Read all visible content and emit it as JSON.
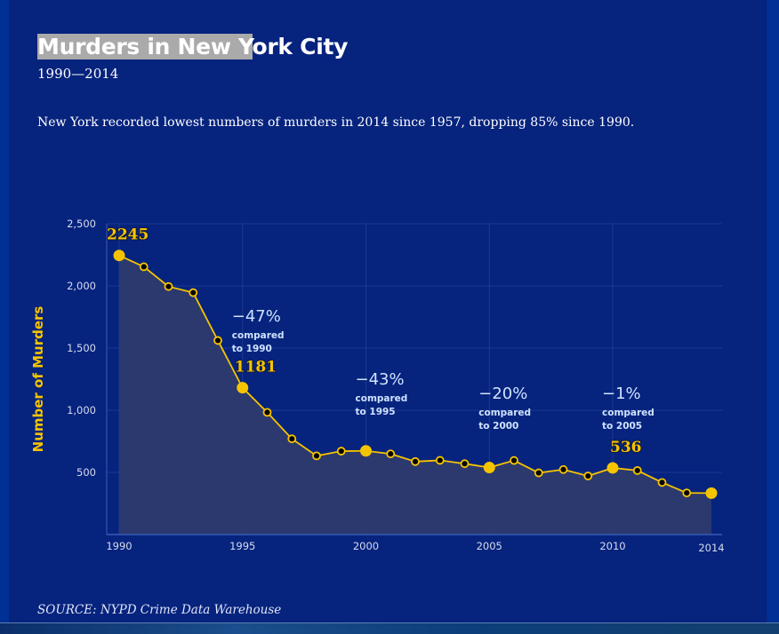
{
  "header": {
    "title_highlighted": "Murders in New Y",
    "title_rest": "ork City",
    "subtitle": "1990—2014",
    "description": "New York recorded lowest numbers of murders in 2014 since 1957, dropping 85% since 1990."
  },
  "footer": {
    "source": "SOURCE: NYPD Crime Data Warehouse"
  },
  "colors": {
    "background": "#06237e",
    "line": "#f5c400",
    "area": "#2e3b6e",
    "annotation": "#cfe3ff"
  },
  "chart_data": {
    "type": "area",
    "title": "Murders in New York City",
    "subtitle": "1990—2014",
    "xlabel": "",
    "ylabel": "Number of Murders",
    "x": [
      1990,
      1991,
      1992,
      1993,
      1994,
      1995,
      1996,
      1997,
      1998,
      1999,
      2000,
      2001,
      2002,
      2003,
      2004,
      2005,
      2006,
      2007,
      2008,
      2009,
      2010,
      2011,
      2012,
      2013,
      2014
    ],
    "series": [
      {
        "name": "Murders",
        "values": [
          2245,
          2154,
          1995,
          1946,
          1561,
          1181,
          983,
          770,
          633,
          671,
          673,
          649,
          587,
          597,
          570,
          539,
          596,
          496,
          523,
          471,
          536,
          515,
          419,
          335,
          333
        ]
      }
    ],
    "highlighted_points": [
      {
        "x": 1990,
        "y": 2245,
        "label": "2245"
      },
      {
        "x": 1995,
        "y": 1181,
        "label": "1181"
      },
      {
        "x": 2000,
        "y": 673,
        "label": ""
      },
      {
        "x": 2005,
        "y": 539,
        "label": ""
      },
      {
        "x": 2010,
        "y": 536,
        "label": "536"
      },
      {
        "x": 2014,
        "y": 333,
        "label": ""
      }
    ],
    "annotations": [
      {
        "x": 1995,
        "pct": "−47%",
        "line1": "compared",
        "line2": "to 1990"
      },
      {
        "x": 2000,
        "pct": "−43%",
        "line1": "compared",
        "line2": "to 1995"
      },
      {
        "x": 2005,
        "pct": "−20%",
        "line1": "compared",
        "line2": "to 2000"
      },
      {
        "x": 2010,
        "pct": "−1%",
        "line1": "compared",
        "line2": "to 2005"
      }
    ],
    "x_ticks": [
      1990,
      1995,
      2000,
      2005,
      2010,
      2014
    ],
    "x_tick_labels": [
      "1990",
      "1995",
      "2000",
      "2005",
      "2010",
      "2014"
    ],
    "y_ticks": [
      500,
      1000,
      1500,
      2000,
      2500
    ],
    "y_tick_labels": [
      "500",
      "1,000",
      "1,500",
      "2,000",
      "2,500"
    ],
    "xlim": [
      1990,
      2014
    ],
    "ylim": [
      0,
      2500
    ],
    "grid": true,
    "legend": "none"
  }
}
